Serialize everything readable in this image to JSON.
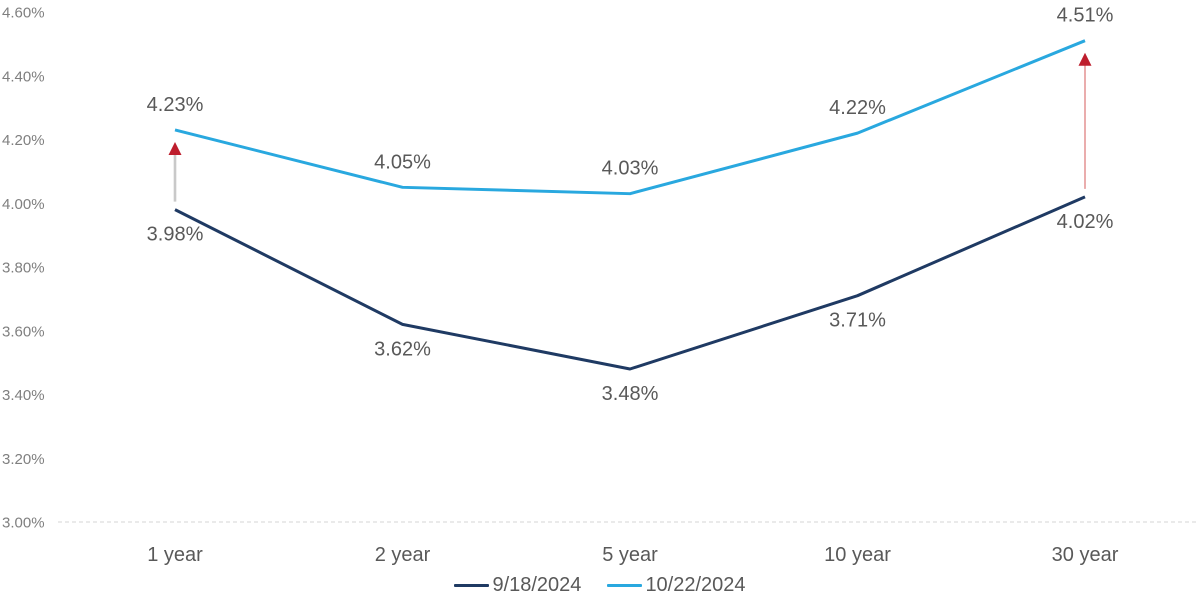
{
  "chart_data": {
    "type": "line",
    "title": "",
    "categories": [
      "1 year",
      "2 year",
      "5 year",
      "10 year",
      "30 year"
    ],
    "series": [
      {
        "name": "9/18/2024",
        "color": "#1F3A63",
        "values": [
          3.98,
          3.62,
          3.48,
          3.71,
          4.02
        ],
        "labels": [
          "3.98%",
          "3.62%",
          "3.48%",
          "3.71%",
          "4.02%"
        ],
        "label_position": "below"
      },
      {
        "name": "10/22/2024",
        "color": "#29A8DF",
        "values": [
          4.23,
          4.05,
          4.03,
          4.22,
          4.51
        ],
        "labels": [
          "4.23%",
          "4.05%",
          "4.03%",
          "4.22%",
          "4.51%"
        ],
        "label_position": "above"
      }
    ],
    "y_axis": {
      "min": 3.0,
      "max": 4.6,
      "ticks": [
        "3.00%",
        "3.20%",
        "3.40%",
        "3.60%",
        "3.80%",
        "4.00%",
        "4.20%",
        "4.40%",
        "4.60%"
      ],
      "tick_color": "#7F7F7F"
    },
    "x_axis": {
      "baseline_style": "dashed",
      "baseline_color": "#E3E3E3",
      "label_color": "#595959"
    },
    "data_label_color": "#595959",
    "grid": false,
    "legend": {
      "position": "bottom",
      "entries": [
        "9/18/2024",
        "10/22/2024"
      ]
    },
    "annotations": {
      "arrows": [
        {
          "category_index": 0,
          "from_series": 0,
          "to_series": 1,
          "shaft_color": "#C9C9C9",
          "shaft_width": 2.6
        },
        {
          "category_index": 4,
          "from_series": 0,
          "to_series": 1,
          "shaft_color": "#E08A8A",
          "shaft_width": 1.4
        }
      ],
      "head_color": "#BE1E2D"
    }
  }
}
